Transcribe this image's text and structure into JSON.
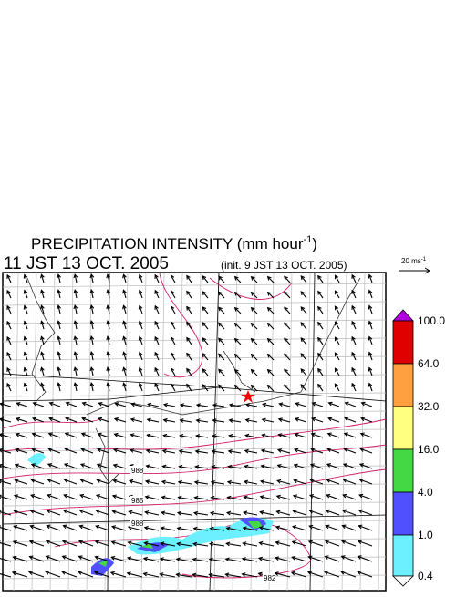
{
  "header": {
    "title": "PRECIPITATION INTENSITY (mm hour",
    "title_sup": "-1",
    "title_end": ")",
    "time": "11 JST 13 OCT. 2005",
    "init": "(init. 9 JST 13 OCT. 2005)"
  },
  "vector_key": {
    "label": "20 ms",
    "label_sup": "-1"
  },
  "legend": {
    "levels": [
      "100.0",
      "64.0",
      "32.0",
      "16.0",
      "4.0",
      "1.0",
      "0.4"
    ]
  },
  "isobars": {
    "labels": [
      "988",
      "985",
      "988",
      "982"
    ]
  }
}
